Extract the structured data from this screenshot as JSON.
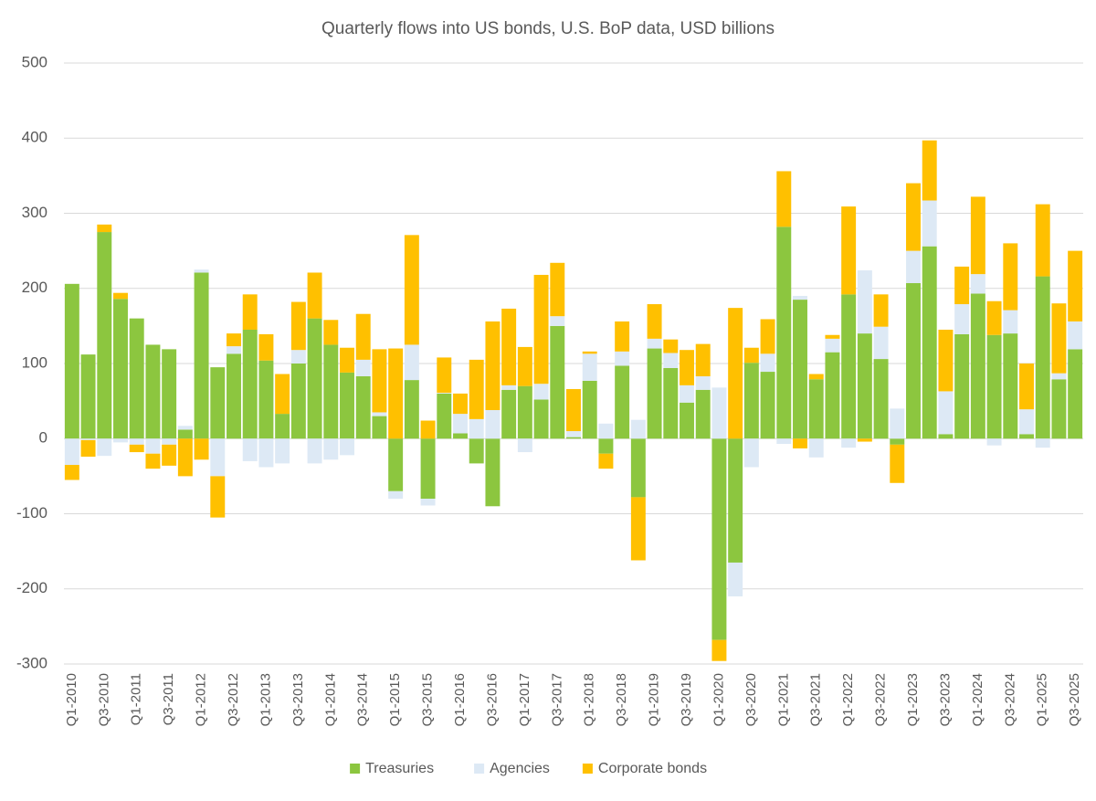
{
  "chart_data": {
    "type": "stacked_bar",
    "title": "Quarterly flows into US bonds, U.S. BoP data, USD billions",
    "categories": [
      "Q1-2010",
      null,
      "Q3-2010",
      null,
      "Q1-2011",
      null,
      "Q3-2011",
      null,
      "Q1-2012",
      null,
      "Q3-2012",
      null,
      "Q1-2013",
      null,
      "Q3-2013",
      null,
      "Q1-2014",
      null,
      "Q3-2014",
      null,
      "Q1-2015",
      null,
      "Q3-2015",
      null,
      "Q1-2016",
      null,
      "Q3-2016",
      null,
      "Q1-2017",
      null,
      "Q3-2017",
      null,
      "Q1-2018",
      null,
      "Q3-2018",
      null,
      "Q1-2019",
      null,
      "Q3-2019",
      null,
      "Q1-2020",
      null,
      "Q3-2020",
      null,
      "Q1-2021",
      null,
      "Q3-2021",
      null,
      "Q1-2022",
      null,
      "Q3-2022",
      null,
      "Q1-2023",
      null,
      "Q3-2023",
      null,
      "Q1-2024",
      null,
      "Q3-2024",
      null,
      "Q1-2025",
      null,
      "Q3-2025"
    ],
    "series": [
      {
        "name": "Treasuries",
        "color": "#8cc63f",
        "values": [
          206,
          112,
          275,
          186,
          160,
          125,
          119,
          12,
          221,
          95,
          113,
          145,
          104,
          33,
          100,
          160,
          125,
          88,
          83,
          30,
          -70,
          78,
          -80,
          60,
          7,
          -33,
          -90,
          65,
          70,
          52,
          150,
          2,
          77,
          -20,
          97,
          -78,
          120,
          94,
          48,
          65,
          -268,
          -165,
          101,
          89,
          282,
          185,
          79,
          115,
          192,
          140,
          106,
          -8,
          207,
          256,
          6,
          139,
          193,
          138,
          140,
          6,
          216,
          79,
          119
        ]
      },
      {
        "name": "Agencies",
        "color": "#dde9f5",
        "values": [
          -35,
          -2,
          -23,
          -5,
          -8,
          -20,
          -8,
          5,
          4,
          -50,
          10,
          -30,
          -38,
          -33,
          18,
          -33,
          -28,
          -22,
          22,
          5,
          -10,
          47,
          -9,
          1,
          26,
          26,
          38,
          6,
          -18,
          21,
          13,
          8,
          36,
          20,
          19,
          25,
          13,
          20,
          23,
          18,
          68,
          -45,
          -38,
          24,
          -7,
          5,
          -25,
          18,
          -12,
          84,
          43,
          40,
          43,
          61,
          57,
          40,
          26,
          -9,
          31,
          33,
          -12,
          8,
          37
        ]
      },
      {
        "name": "Corporate bonds",
        "color": "#ffc000",
        "values": [
          -20,
          -22,
          10,
          8,
          -10,
          -20,
          -28,
          -50,
          -28,
          -55,
          17,
          47,
          35,
          53,
          64,
          61,
          33,
          33,
          61,
          84,
          120,
          146,
          24,
          47,
          27,
          79,
          118,
          102,
          52,
          145,
          71,
          56,
          3,
          -20,
          40,
          -84,
          46,
          18,
          47,
          43,
          -28,
          174,
          20,
          46,
          74,
          -13,
          7,
          5,
          117,
          -4,
          43,
          -51,
          90,
          80,
          82,
          50,
          103,
          45,
          89,
          61,
          96,
          93,
          94
        ]
      }
    ],
    "ylim": [
      -300,
      500
    ],
    "yticks": [
      -300,
      -200,
      -100,
      0,
      100,
      200,
      300,
      400,
      500
    ],
    "grid": true,
    "legend": "bottom"
  }
}
